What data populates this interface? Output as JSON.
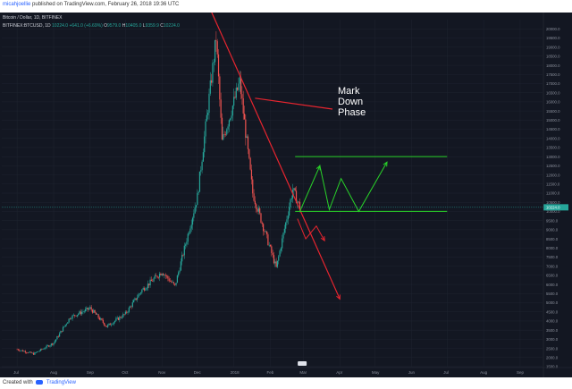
{
  "header": {
    "user": "micahjoellie",
    "published_text": "published on TradingView.com, February 26, 2018 19:36 UTC"
  },
  "legend": {
    "symbol": "Bitcoin / Dollar, 1D, BITFINEX",
    "ticker": "BITFINEX:BTCUSD, 1D",
    "last": "10224.0",
    "change": "+641.0 (+6.69%)",
    "open": "9579.0",
    "high": "10405.0",
    "low": "9359.9",
    "close": "10224.0"
  },
  "annotation": {
    "line1": "Mark",
    "line2": "Down",
    "line3": "Phase",
    "color": "#ffffff"
  },
  "colors": {
    "background": "#131722",
    "up": "#26a69a",
    "down": "#ef5350",
    "trend": "#e8252f",
    "channel": "#29d329",
    "text": "#8a8f9b",
    "last_badge": "#26a69a"
  },
  "footer": {
    "created_with": "Created with",
    "brand": "TradingView"
  },
  "chart_data": {
    "type": "candlestick",
    "title": "Bitcoin / Dollar, 1D, BITFINEX",
    "x_ticks": [
      "Jul",
      "Aug",
      "Sep",
      "Oct",
      "Nov",
      "Dec",
      "2018",
      "Feb",
      "Mar",
      "Apr",
      "May",
      "Jun",
      "Jul",
      "Aug",
      "Sep"
    ],
    "y_ticks": [
      "1500.0",
      "2000.0",
      "2500.0",
      "3000.0",
      "3500.0",
      "4000.0",
      "4500.0",
      "5000.0",
      "5500.0",
      "6000.0",
      "6500.0",
      "7000.0",
      "7500.0",
      "8000.0",
      "8500.0",
      "9000.0",
      "9500.0",
      "10000.0",
      "10500.0",
      "11000.0",
      "11500.0",
      "12000.0",
      "12500.0",
      "13000.0",
      "13500.0",
      "14000.0",
      "14500.0",
      "15000.0",
      "15500.0",
      "16000.0",
      "16500.0",
      "17000.0",
      "17500.0",
      "18000.0",
      "18500.0",
      "19000.0",
      "19500.0",
      "20000.0"
    ],
    "ylim": [
      1500,
      20500
    ],
    "last_price": 10224.0,
    "series": [
      {
        "date": "2017-07-01",
        "close": 2450
      },
      {
        "date": "2017-07-15",
        "close": 2200
      },
      {
        "date": "2017-08-01",
        "close": 2800
      },
      {
        "date": "2017-08-15",
        "close": 4200
      },
      {
        "date": "2017-09-01",
        "close": 4700
      },
      {
        "date": "2017-09-15",
        "close": 3700
      },
      {
        "date": "2017-10-01",
        "close": 4400
      },
      {
        "date": "2017-10-15",
        "close": 5700
      },
      {
        "date": "2017-11-01",
        "close": 6700
      },
      {
        "date": "2017-11-12",
        "close": 5900
      },
      {
        "date": "2017-12-01",
        "close": 10800
      },
      {
        "date": "2017-12-17",
        "close": 19500
      },
      {
        "date": "2017-12-22",
        "close": 13800
      },
      {
        "date": "2018-01-06",
        "close": 17100
      },
      {
        "date": "2018-01-17",
        "close": 11000
      },
      {
        "date": "2018-02-06",
        "close": 6900
      },
      {
        "date": "2018-02-20",
        "close": 11200
      },
      {
        "date": "2018-02-26",
        "close": 10224
      }
    ]
  }
}
